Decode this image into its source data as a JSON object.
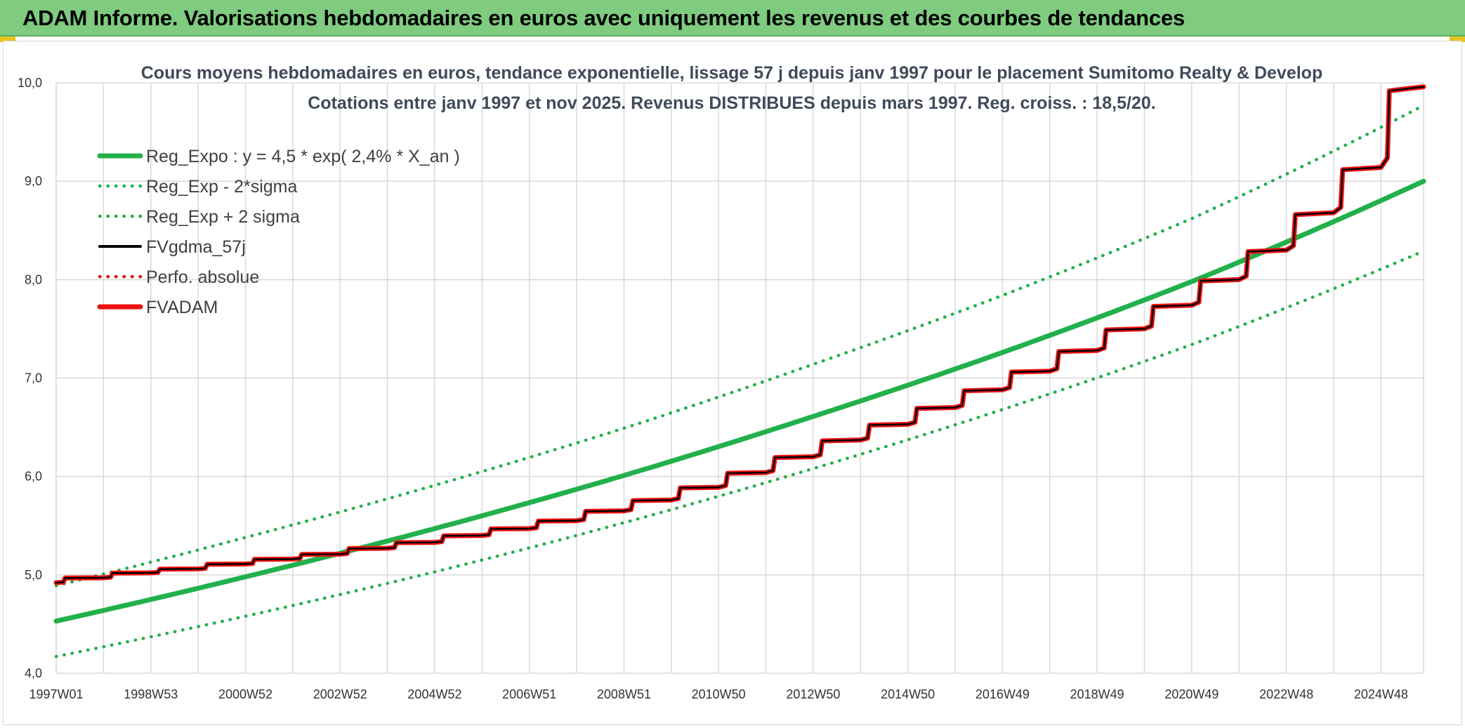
{
  "header": {
    "title": "ADAM Informe. Valorisations hebdomadaires en euros avec uniquement les revenus et des courbes de tendances"
  },
  "colors": {
    "banner": "#7fcb7f",
    "accent": "#e8c21c",
    "reg_green": "#22b04b",
    "fvgdma": "#000000",
    "fvadam": "#ee1111",
    "perfo": "#dd1111",
    "grid": "#d9d9d9"
  },
  "chart_data": {
    "type": "line",
    "title": "Cours moyens hebdomadaires en euros, tendance exponentielle, lissage 57 j depuis janv 1997 pour le placement Sumitomo Realty & Develop",
    "subtitle": "Cotations entre janv 1997 et nov 2025. Revenus DISTRIBUES depuis mars 1997. Reg. croiss. : 18,5/20.",
    "xlabel": "",
    "ylabel": "",
    "x_range": [
      1997.0,
      2025.9
    ],
    "ylim": [
      4.0,
      10.0
    ],
    "y_ticks": [
      4.0,
      5.0,
      6.0,
      7.0,
      8.0,
      9.0,
      10.0
    ],
    "y_tick_labels": [
      "4,0",
      "5,0",
      "6,0",
      "7,0",
      "8,0",
      "9,0",
      "10,0"
    ],
    "x_tick_labels": [
      "1997W01",
      "1998W53",
      "2000W52",
      "2002W52",
      "2004W52",
      "2006W51",
      "2008W51",
      "2010W50",
      "2012W50",
      "2014W50",
      "2016W49",
      "2018W49",
      "2020W49",
      "2022W48",
      "2024W48"
    ],
    "x_tick_positions": [
      1997.0,
      1999.0,
      2001.0,
      2003.0,
      2005.0,
      2007.0,
      2009.0,
      2011.0,
      2013.0,
      2015.0,
      2017.0,
      2019.0,
      2021.0,
      2023.0,
      2025.0
    ],
    "grid": true,
    "legend_position": "top-left",
    "series": [
      {
        "name": "Reg_Expo : y = 4,5 * exp( 2,4% *  X_an )",
        "style": "solid-thick",
        "color": "#22b04b",
        "x": [
          1997.0,
          2001.0,
          2005.0,
          2009.0,
          2013.0,
          2017.0,
          2021.0,
          2025.9
        ],
        "values": [
          4.53,
          4.98,
          5.47,
          6.01,
          6.61,
          7.26,
          7.98,
          9.0
        ]
      },
      {
        "name": "Reg_Exp - 2*sigma",
        "style": "dotted",
        "color": "#22b04b",
        "x": [
          1997.0,
          2001.0,
          2005.0,
          2009.0,
          2013.0,
          2017.0,
          2021.0,
          2025.9
        ],
        "values": [
          4.17,
          4.58,
          5.03,
          5.53,
          6.08,
          6.68,
          7.34,
          8.29
        ]
      },
      {
        "name": "Reg_Exp + 2 sigma",
        "style": "dotted",
        "color": "#22b04b",
        "x": [
          1997.0,
          2001.0,
          2005.0,
          2009.0,
          2013.0,
          2017.0,
          2021.0,
          2025.9
        ],
        "values": [
          4.89,
          5.38,
          5.91,
          6.49,
          7.14,
          7.84,
          8.62,
          9.77
        ]
      },
      {
        "name": "FVgdma_57j",
        "style": "solid",
        "color": "#000000",
        "x": [
          1997.0,
          1998.0,
          1999.0,
          2000.0,
          2001.0,
          2002.0,
          2003.0,
          2004.0,
          2005.0,
          2006.0,
          2007.0,
          2008.0,
          2009.0,
          2010.0,
          2011.0,
          2012.0,
          2013.0,
          2014.0,
          2015.0,
          2016.0,
          2017.0,
          2018.0,
          2019.0,
          2020.0,
          2021.0,
          2022.0,
          2023.0,
          2024.0,
          2025.0,
          2025.9
        ],
        "values": [
          4.92,
          4.97,
          5.02,
          5.06,
          5.11,
          5.16,
          5.21,
          5.27,
          5.33,
          5.4,
          5.47,
          5.55,
          5.65,
          5.76,
          5.89,
          6.04,
          6.2,
          6.37,
          6.53,
          6.7,
          6.88,
          7.07,
          7.28,
          7.5,
          7.74,
          8.0,
          8.3,
          8.68,
          9.14,
          9.96
        ]
      },
      {
        "name": "Perfo. absolue",
        "style": "dotted",
        "color": "#dd1111",
        "x": [
          1997.0,
          1998.0,
          1999.0,
          2000.0,
          2001.0,
          2002.0,
          2003.0,
          2004.0,
          2005.0,
          2006.0,
          2007.0,
          2008.0,
          2009.0,
          2010.0,
          2011.0,
          2012.0,
          2013.0,
          2014.0,
          2015.0,
          2016.0,
          2017.0,
          2018.0,
          2019.0,
          2020.0,
          2021.0,
          2022.0,
          2023.0,
          2024.0,
          2025.0,
          2025.9
        ],
        "values": [
          4.92,
          4.97,
          5.02,
          5.06,
          5.11,
          5.16,
          5.21,
          5.27,
          5.33,
          5.4,
          5.47,
          5.55,
          5.65,
          5.76,
          5.89,
          6.04,
          6.2,
          6.37,
          6.53,
          6.7,
          6.88,
          7.07,
          7.28,
          7.5,
          7.74,
          8.0,
          8.3,
          8.68,
          9.14,
          9.96
        ]
      },
      {
        "name": "FVADAM",
        "style": "solid-thick",
        "color": "#ee1111",
        "x": [
          1997.0,
          1998.0,
          1999.0,
          2000.0,
          2001.0,
          2002.0,
          2003.0,
          2004.0,
          2005.0,
          2006.0,
          2007.0,
          2008.0,
          2009.0,
          2010.0,
          2011.0,
          2012.0,
          2013.0,
          2014.0,
          2015.0,
          2016.0,
          2017.0,
          2018.0,
          2019.0,
          2020.0,
          2021.0,
          2022.0,
          2023.0,
          2024.0,
          2025.0,
          2025.9
        ],
        "values": [
          4.92,
          4.97,
          5.02,
          5.06,
          5.11,
          5.16,
          5.21,
          5.27,
          5.33,
          5.4,
          5.47,
          5.55,
          5.65,
          5.76,
          5.89,
          6.04,
          6.2,
          6.37,
          6.53,
          6.7,
          6.88,
          7.07,
          7.28,
          7.5,
          7.74,
          8.0,
          8.3,
          8.68,
          9.14,
          9.96
        ]
      }
    ]
  }
}
